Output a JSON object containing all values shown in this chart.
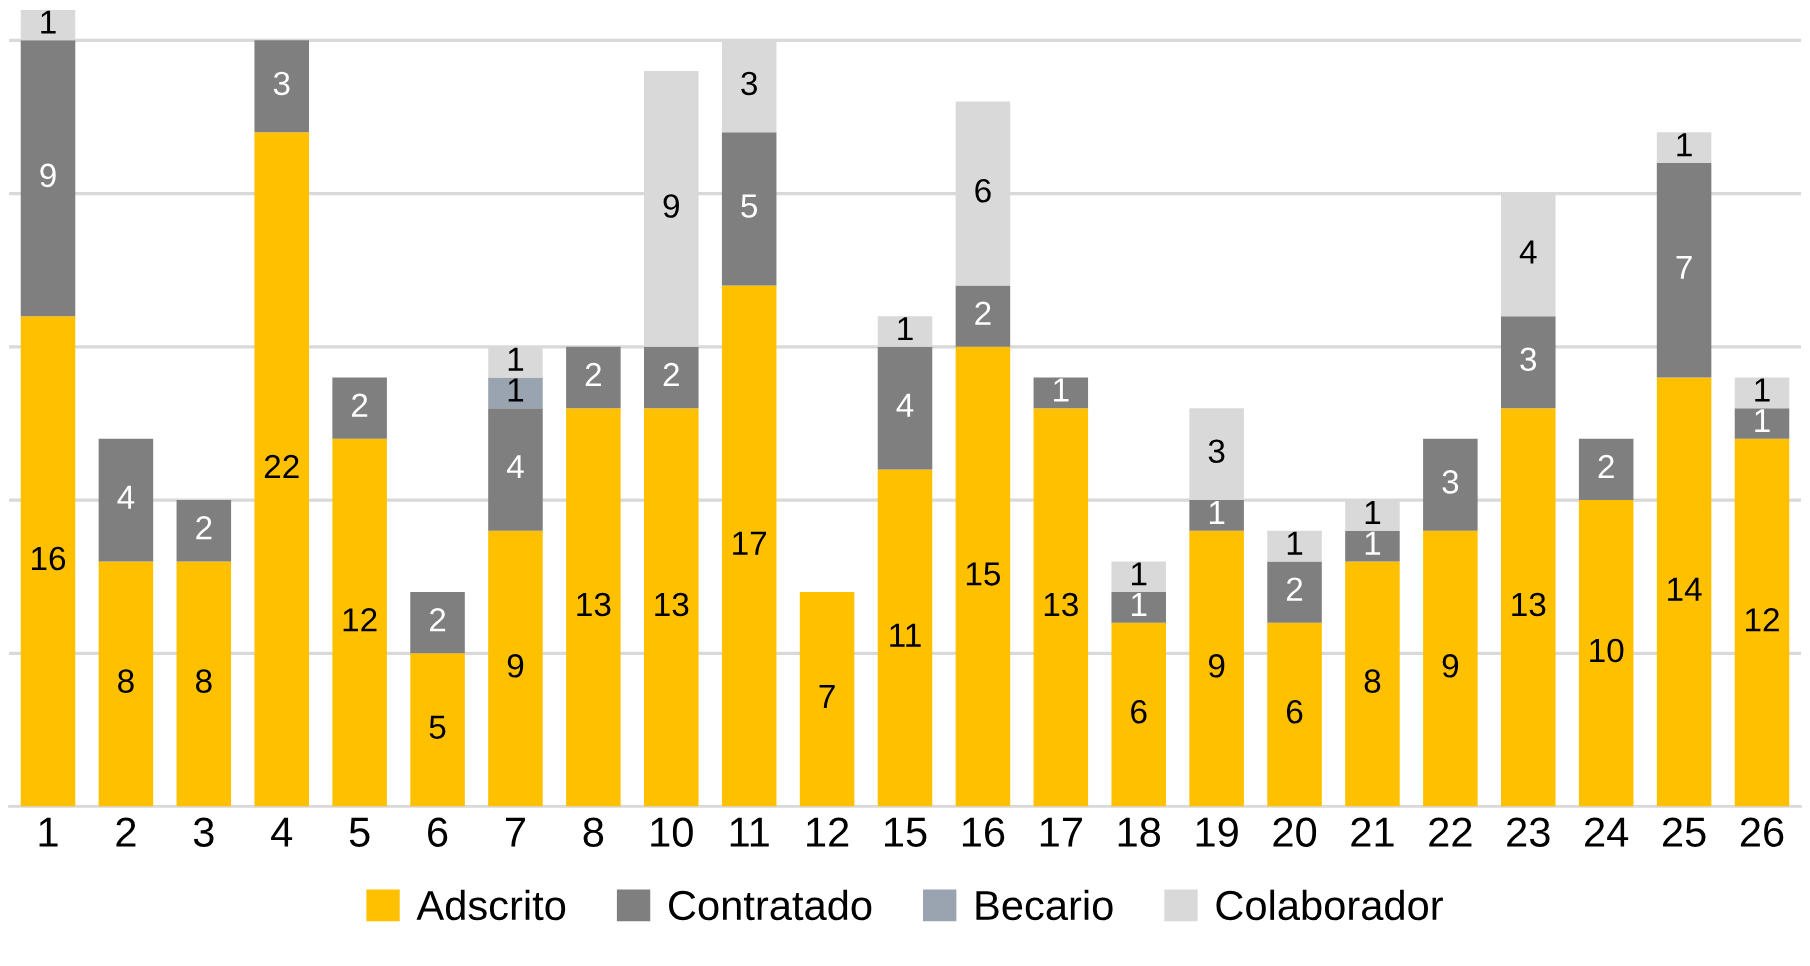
{
  "chart_data": {
    "type": "bar",
    "stacked": true,
    "categories": [
      "1",
      "2",
      "3",
      "4",
      "5",
      "6",
      "7",
      "8",
      "10",
      "11",
      "12",
      "15",
      "16",
      "17",
      "18",
      "19",
      "20",
      "21",
      "22",
      "23",
      "24",
      "25",
      "26"
    ],
    "series": [
      {
        "name": "Adscrito",
        "color": "#ffc000",
        "values": [
          16,
          8,
          8,
          22,
          12,
          5,
          9,
          13,
          13,
          17,
          7,
          11,
          15,
          13,
          6,
          9,
          6,
          8,
          9,
          13,
          10,
          14,
          12
        ]
      },
      {
        "name": "Contratado",
        "color": "#7f7f7f",
        "values": [
          9,
          4,
          2,
          3,
          2,
          2,
          4,
          2,
          2,
          5,
          null,
          4,
          2,
          1,
          1,
          1,
          2,
          1,
          3,
          3,
          2,
          7,
          1
        ]
      },
      {
        "name": "Becario",
        "color": "#9aa3b0",
        "values": [
          null,
          null,
          null,
          null,
          null,
          null,
          1,
          null,
          null,
          null,
          null,
          null,
          null,
          null,
          null,
          null,
          null,
          null,
          null,
          null,
          null,
          null,
          null
        ]
      },
      {
        "name": "Colaborador",
        "color": "#d9d9d9",
        "values": [
          1,
          null,
          null,
          null,
          null,
          null,
          1,
          null,
          9,
          3,
          null,
          1,
          6,
          null,
          1,
          3,
          1,
          1,
          null,
          4,
          null,
          1,
          1
        ]
      }
    ],
    "ylim": [
      0,
      26
    ],
    "yticks": [
      {
        "value": 0,
        "label": null
      },
      {
        "value": 5,
        "label": null
      },
      {
        "value": 10,
        "label": null
      },
      {
        "value": 15,
        "label": null
      },
      {
        "value": 20,
        "label": null
      },
      {
        "value": 25,
        "label": null
      }
    ],
    "grid": "y",
    "legend": "bottom",
    "data_labels": true
  }
}
